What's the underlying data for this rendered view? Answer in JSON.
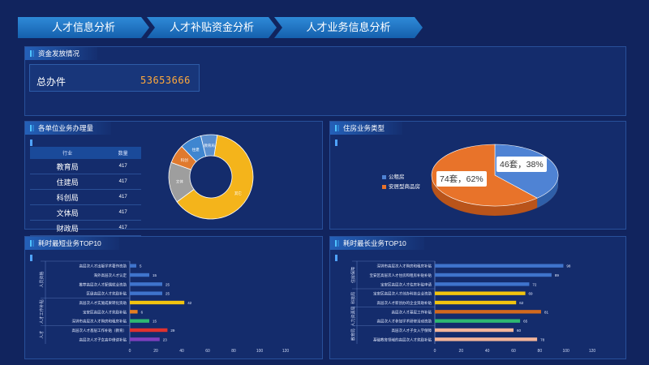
{
  "tabs": [
    {
      "label": "人才信息分析"
    },
    {
      "label": "人才补贴资金分析"
    },
    {
      "label": "人才业务信息分析"
    }
  ],
  "funds": {
    "title": "资金发放情况",
    "total_label": "总办件",
    "total_value": "53653666"
  },
  "units": {
    "title": "各单位业务办理量",
    "table_headers": [
      "行业",
      "数量"
    ],
    "rows": [
      {
        "name": "教育局",
        "count": "417"
      },
      {
        "name": "住建局",
        "count": "417"
      },
      {
        "name": "科创局",
        "count": "417"
      },
      {
        "name": "文体局",
        "count": "417"
      },
      {
        "name": "财政局",
        "count": "417"
      }
    ],
    "donut": [
      {
        "label": "其它",
        "value": 60,
        "color": "#f4b41b"
      },
      {
        "label": "文体",
        "value": 15,
        "color": "#9e9e9e"
      },
      {
        "label": "科创",
        "value": 7,
        "color": "#e07a2e"
      },
      {
        "label": "住建",
        "value": 8,
        "color": "#3f86d0"
      },
      {
        "label": "教育局",
        "value": 6,
        "color": "#5a8fcf"
      }
    ]
  },
  "housing": {
    "title": "住房业务类型",
    "legend": [
      {
        "label": "公租房",
        "color": "#4f83d4"
      },
      {
        "label": "安居型商品房",
        "color": "#e8732a"
      }
    ],
    "slices": [
      {
        "label": "公租房",
        "value": 46,
        "percent": 38,
        "color": "#4f83d4"
      },
      {
        "label": "安居型商品房",
        "value": 74,
        "percent": 62,
        "color": "#e8732a"
      }
    ],
    "labels": [
      "46套，38%",
      "74套，62%"
    ]
  },
  "shortest": {
    "title": "耗时最短业务TOP10",
    "group_labels": [
      "人员资格",
      "人才工作补贴",
      "人才"
    ],
    "chart_data": {
      "type": "bar",
      "orientation": "horizontal",
      "categories": [
        "高层次人才出版学术著作资助",
        "海外高层次人才认定",
        "推荐高层次人才配偶就业资助",
        "区级高层次人才奖励补贴",
        "高层次人才实施成果转化资助",
        "宝安区高层次人才奖励补贴",
        "深圳市高层次人才购房和租房补贴",
        "高层次人才基层工作补贴（教育）",
        "高层次人才子女高中借读补贴"
      ],
      "values": [
        5,
        15,
        25,
        25,
        42,
        6,
        15,
        29,
        23
      ],
      "colors": [
        "#3f74cc",
        "#3f74cc",
        "#3f74cc",
        "#3f74cc",
        "#f1c40f",
        "#e67e22",
        "#2eb872",
        "#e0322f",
        "#7d3fbf"
      ],
      "xticks": [
        "0",
        "20",
        "40",
        "60",
        "80",
        "100",
        "120"
      ],
      "xlim": [
        0,
        120
      ]
    }
  },
  "longest": {
    "title": "耗时最长业务TOP10",
    "group_labels": [
      "住房保障",
      "科技局",
      "人力资源局",
      "教育局"
    ],
    "chart_data": {
      "type": "bar",
      "orientation": "horizontal",
      "categories": [
        "深圳市高层次人才购房和租房补贴",
        "宝安区高层次人才住房和租房补贴补贴",
        "宝安区高层次人才住房补贴申请",
        "宝安区高层次人才创办科技企业资助",
        "高层次人才新创办的企业资助补贴",
        "高层次人才基层工作补贴",
        "高层次人才参加学术研修活动资助",
        "高层次人才子女入学保障",
        "基础教育领域的高层次人才奖励补贴"
      ],
      "values": [
        98,
        89,
        72,
        69,
        62,
        81,
        65,
        60,
        78
      ],
      "colors": [
        "#3f74cc",
        "#3f74cc",
        "#3f74cc",
        "#f1c40f",
        "#f1c40f",
        "#d2691e",
        "#2eb872",
        "#f2b49a",
        "#f2b49a"
      ],
      "xticks": [
        "0",
        "20",
        "40",
        "60",
        "80",
        "100",
        "120"
      ],
      "xlim": [
        0,
        120
      ]
    }
  }
}
